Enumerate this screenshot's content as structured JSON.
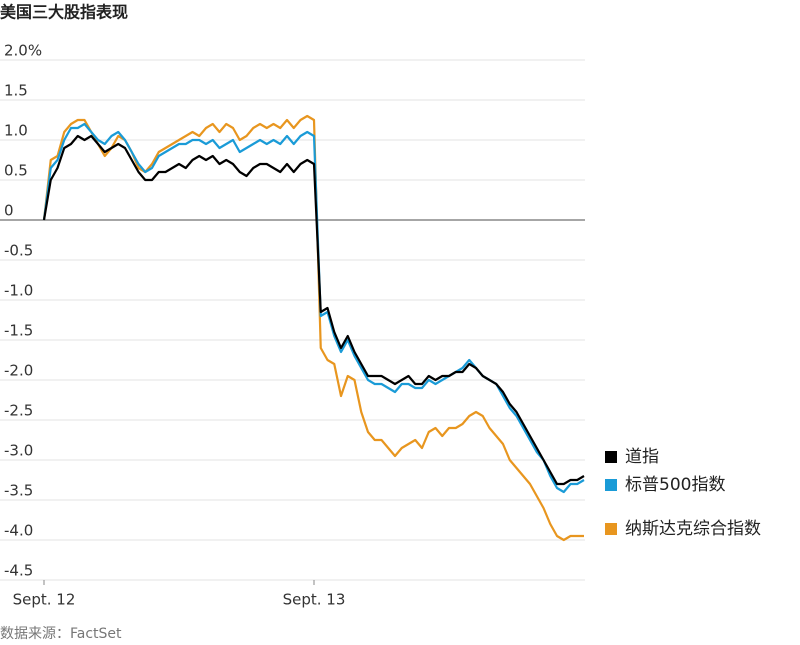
{
  "chart_data": {
    "type": "line",
    "title": "美国三大股指表现",
    "source": "数据来源：FactSet",
    "categories": [
      "Sept. 12",
      null,
      null,
      null,
      null,
      null,
      null,
      null,
      null,
      null,
      null,
      null,
      null,
      null,
      null,
      null,
      null,
      null,
      null,
      null,
      null,
      null,
      null,
      null,
      null,
      null,
      null,
      null,
      null,
      null,
      null,
      null,
      null,
      null,
      null,
      null,
      null,
      null,
      null,
      null,
      "Sept. 13",
      null,
      null,
      null,
      null,
      null,
      null,
      null,
      null,
      null,
      null,
      null,
      null,
      null,
      null,
      null,
      null,
      null,
      null,
      null,
      null,
      null,
      null,
      null,
      null,
      null,
      null,
      null,
      null,
      null,
      null,
      null,
      null,
      null,
      null,
      null,
      null,
      null,
      null,
      null,
      null
    ],
    "ylim": [
      -4.5,
      2.0
    ],
    "yticks": [
      {
        "value": 2.0,
        "label": "2.0%"
      },
      1.5,
      {
        "value": 1.0,
        "label": "1.0"
      },
      0.5,
      0,
      -0.5,
      {
        "value": -1.0,
        "label": "-1.0"
      },
      -1.5,
      {
        "value": -2.0,
        "label": "-2.0"
      },
      -2.5,
      {
        "value": -3.0,
        "label": "-3.0"
      },
      -3.5,
      {
        "value": -4.0,
        "label": "-4.0"
      },
      -4.5
    ],
    "grid": true,
    "legend": "right",
    "series": [
      {
        "name": "纳斯达克综合指数",
        "color": "#e8961f",
        "values": [
          0,
          0.75,
          0.8,
          1.1,
          1.2,
          1.25,
          1.25,
          1.1,
          0.95,
          0.8,
          0.9,
          1.05,
          1.0,
          0.85,
          0.65,
          0.6,
          0.7,
          0.85,
          0.9,
          0.95,
          1.0,
          1.05,
          1.1,
          1.05,
          1.15,
          1.2,
          1.1,
          1.2,
          1.15,
          1.0,
          1.05,
          1.15,
          1.2,
          1.15,
          1.2,
          1.15,
          1.25,
          1.15,
          1.25,
          1.3,
          1.25,
          -1.6,
          -1.75,
          -1.8,
          -2.2,
          -1.95,
          -2.0,
          -2.4,
          -2.65,
          -2.75,
          -2.75,
          -2.85,
          -2.95,
          -2.85,
          -2.8,
          -2.75,
          -2.85,
          -2.65,
          -2.6,
          -2.7,
          -2.6,
          -2.6,
          -2.55,
          -2.45,
          -2.4,
          -2.45,
          -2.6,
          -2.7,
          -2.8,
          -3.0,
          -3.1,
          -3.2,
          -3.3,
          -3.45,
          -3.6,
          -3.8,
          -3.95,
          -4.0,
          -3.95,
          -3.95,
          -3.95
        ]
      },
      {
        "name": "标普500指数",
        "color": "#1a9bd7",
        "values": [
          0,
          0.65,
          0.75,
          1.0,
          1.15,
          1.15,
          1.2,
          1.1,
          1.0,
          0.95,
          1.05,
          1.1,
          1.0,
          0.85,
          0.7,
          0.6,
          0.65,
          0.8,
          0.85,
          0.9,
          0.95,
          0.95,
          1.0,
          1.0,
          0.95,
          1.0,
          0.9,
          0.95,
          1.0,
          0.85,
          0.9,
          0.95,
          1.0,
          0.95,
          1.0,
          0.95,
          1.05,
          0.95,
          1.05,
          1.1,
          1.05,
          -1.2,
          -1.15,
          -1.45,
          -1.65,
          -1.5,
          -1.7,
          -1.85,
          -2.0,
          -2.05,
          -2.05,
          -2.1,
          -2.15,
          -2.05,
          -2.05,
          -2.1,
          -2.1,
          -2.0,
          -2.05,
          -2.0,
          -1.95,
          -1.9,
          -1.85,
          -1.75,
          -1.85,
          -1.95,
          -2.0,
          -2.05,
          -2.2,
          -2.35,
          -2.45,
          -2.6,
          -2.75,
          -2.9,
          -3.0,
          -3.2,
          -3.35,
          -3.4,
          -3.3,
          -3.3,
          -3.25
        ]
      },
      {
        "name": "道指",
        "color": "#000000",
        "values": [
          0,
          0.5,
          0.65,
          0.9,
          0.95,
          1.05,
          1.0,
          1.05,
          0.95,
          0.85,
          0.9,
          0.95,
          0.9,
          0.75,
          0.6,
          0.5,
          0.5,
          0.6,
          0.6,
          0.65,
          0.7,
          0.65,
          0.75,
          0.8,
          0.75,
          0.8,
          0.7,
          0.75,
          0.7,
          0.6,
          0.55,
          0.65,
          0.7,
          0.7,
          0.65,
          0.6,
          0.7,
          0.6,
          0.7,
          0.75,
          0.7,
          -1.15,
          -1.1,
          -1.4,
          -1.6,
          -1.45,
          -1.65,
          -1.8,
          -1.95,
          -1.95,
          -1.95,
          -2.0,
          -2.05,
          -2.0,
          -1.95,
          -2.05,
          -2.05,
          -1.95,
          -2.0,
          -1.95,
          -1.95,
          -1.9,
          -1.9,
          -1.8,
          -1.85,
          -1.95,
          -2.0,
          -2.05,
          -2.15,
          -2.3,
          -2.4,
          -2.55,
          -2.7,
          -2.85,
          -3.0,
          -3.15,
          -3.3,
          -3.3,
          -3.25,
          -3.25,
          -3.2
        ]
      }
    ]
  }
}
